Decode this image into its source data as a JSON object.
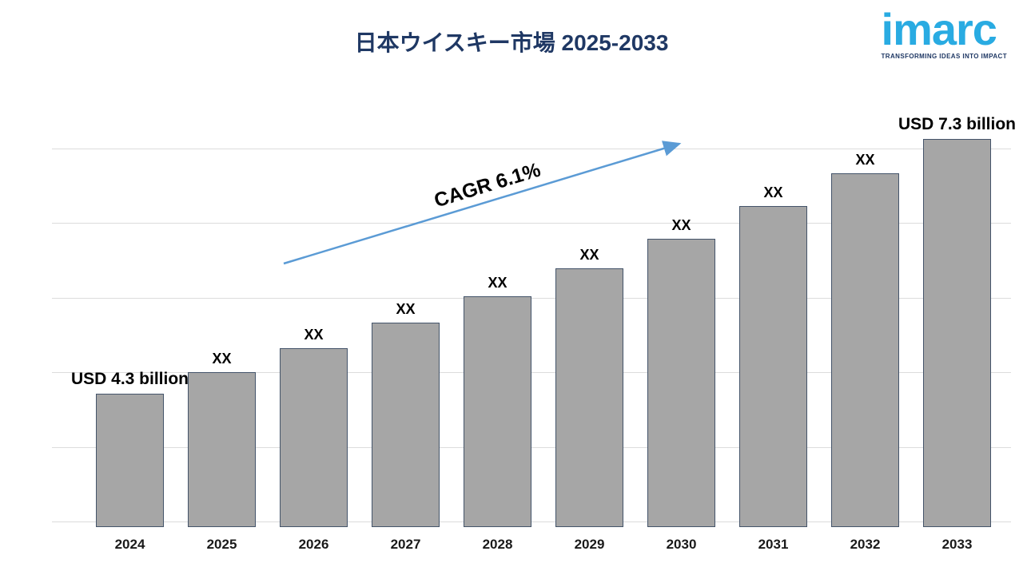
{
  "header": {
    "title": "日本ウイスキー市場 2025-2033"
  },
  "logo": {
    "wordmark": "imarc",
    "tagline": "TRANSFORMING IDEAS INTO IMPACT",
    "wordmark_color": "#29abe2",
    "tagline_color": "#1f3864"
  },
  "chart_data": {
    "type": "bar",
    "title": "日本ウイスキー市場 2025-2033",
    "categories": [
      "2024",
      "2025",
      "2026",
      "2027",
      "2028",
      "2029",
      "2030",
      "2031",
      "2032",
      "2033"
    ],
    "values": [
      4.3,
      4.56,
      4.84,
      5.14,
      5.45,
      5.78,
      6.13,
      6.51,
      6.9,
      7.3
    ],
    "bar_labels": [
      "USD 4.3 billion",
      "XX",
      "XX",
      "XX",
      "XX",
      "XX",
      "XX",
      "XX",
      "XX",
      "USD 7.3 billion"
    ],
    "annotation": "CAGR 6.1%",
    "first_value_label": "USD 4.3 billion",
    "last_value_label": "USD 7.3 billion",
    "xlabel": "",
    "ylabel": "",
    "ylim": [
      2.73,
      7.53
    ],
    "grid": true,
    "legend": "none",
    "bar_color": "#a6a6a6",
    "bar_border_color": "#44546a",
    "arrow_color": "#5b9bd5",
    "title_color": "#1f3864"
  }
}
